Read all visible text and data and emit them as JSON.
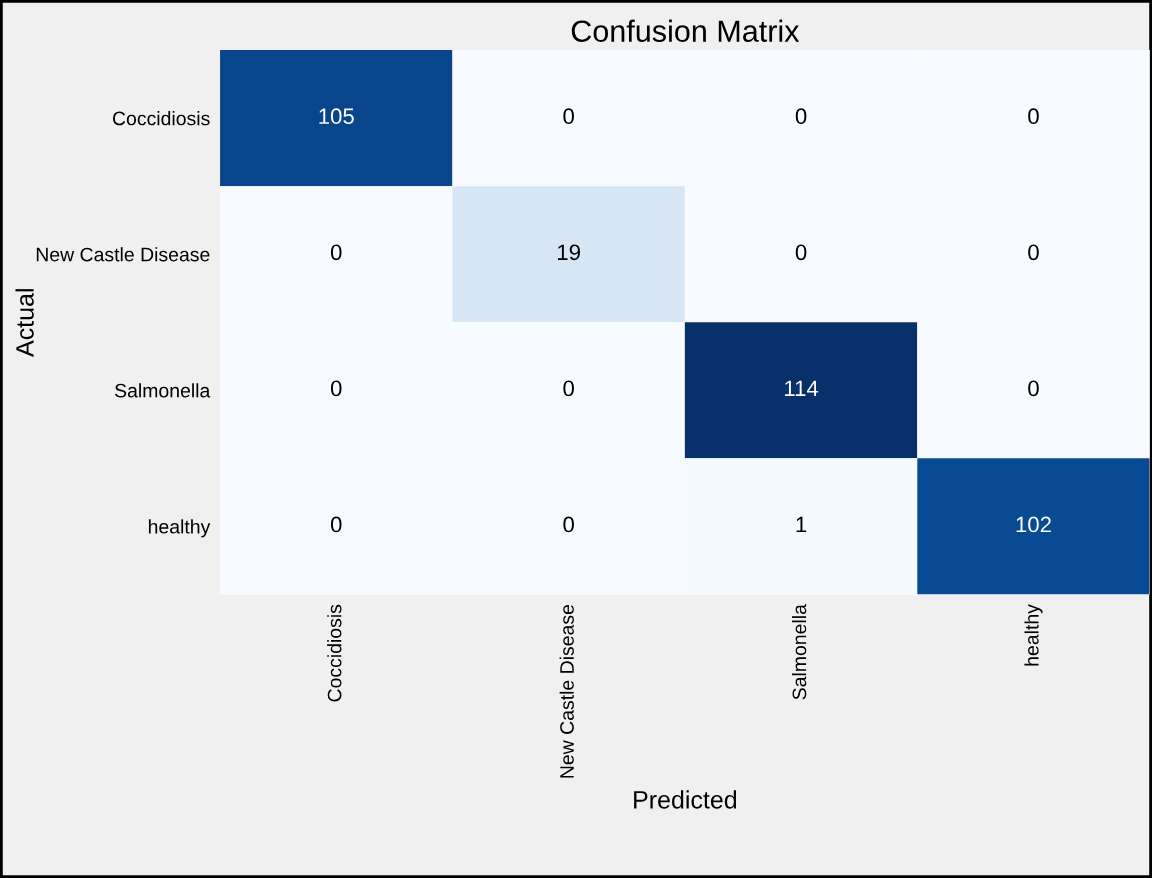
{
  "chart_data": {
    "type": "heatmap",
    "title": "Confusion Matrix",
    "xlabel": "Predicted",
    "ylabel": "Actual",
    "categories": [
      "Coccidiosis",
      "New Castle Disease",
      "Salmonella",
      "healthy"
    ],
    "y_categories": [
      "Coccidiosis",
      "New Castle Disease",
      "Salmonella",
      "healthy"
    ],
    "cells": [
      [
        105,
        0,
        0,
        0
      ],
      [
        0,
        19,
        0,
        0
      ],
      [
        0,
        0,
        114,
        0
      ],
      [
        0,
        0,
        1,
        102
      ]
    ],
    "data_labels": true
  }
}
